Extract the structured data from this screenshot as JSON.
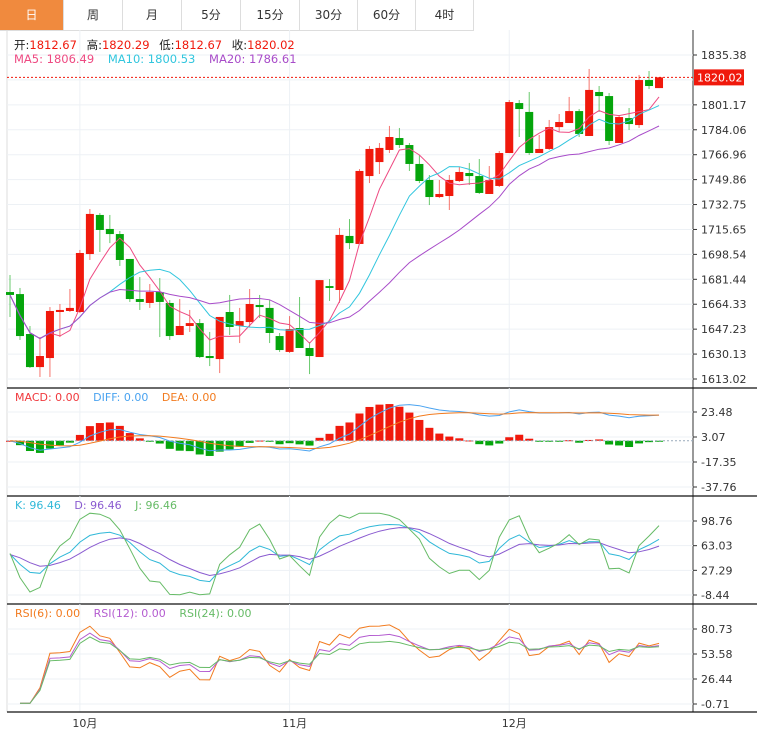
{
  "tabs": [
    {
      "label": "日",
      "active": true
    },
    {
      "label": "周"
    },
    {
      "label": "月"
    },
    {
      "label": "5分"
    },
    {
      "label": "15分"
    },
    {
      "label": "30分"
    },
    {
      "label": "60分"
    },
    {
      "label": "4时"
    }
  ],
  "ohlc_info": {
    "open_label": "开:",
    "open": "1812.67",
    "high_label": "高:",
    "high": "1820.29",
    "low_label": "低:",
    "low": "1812.67",
    "close_label": "收:",
    "close": "1820.02"
  },
  "ma_info": {
    "ma5": "MA5: 1806.49",
    "ma10": "MA10: 1800.53",
    "ma20": "MA20: 1786.61"
  },
  "macd_info": {
    "macd": "MACD: 0.00",
    "diff": "DIFF: 0.00",
    "dea": "DEA: 0.00"
  },
  "kdj_info": {
    "k": "K: 96.46",
    "d": "D: 96.46",
    "j": "J: 96.46"
  },
  "rsi_info": {
    "rsi6": "RSI(6): 0.00",
    "rsi12": "RSI(12): 0.00",
    "rsi24": "RSI(24): 0.00"
  },
  "current_price": "1820.02",
  "colors": {
    "up": "#f0190c",
    "down": "#05a50c",
    "ma5": "#ee4a82",
    "ma10": "#32c6de",
    "ma20": "#a84cc9",
    "diff": "#4aa3f0",
    "dea": "#f27b1f",
    "k": "#30b8d8",
    "d": "#8a5bd0",
    "j": "#66bb66",
    "rsi6": "#f27b1f",
    "rsi12": "#b45cd0",
    "rsi24": "#66bb66",
    "tab_active": "#f08a3e"
  },
  "chart_data": {
    "type": "candlestick",
    "price_axis": {
      "labels": [
        "1835.38",
        "1801.17",
        "1784.06",
        "1766.96",
        "1749.86",
        "1732.75",
        "1715.65",
        "1698.54",
        "1681.44",
        "1664.33",
        "1647.23",
        "1630.13",
        "1613.02"
      ],
      "range": [
        1613.02,
        1835.38
      ]
    },
    "macd_axis": {
      "labels": [
        "23.48",
        "3.07",
        "-17.35",
        "-37.76"
      ],
      "range": [
        -37.76,
        23.48
      ]
    },
    "kdj_axis": {
      "labels": [
        "98.76",
        "63.03",
        "27.29",
        "-8.44"
      ],
      "range": [
        -8.44,
        98.76
      ]
    },
    "rsi_axis": {
      "labels": [
        "80.73",
        "53.58",
        "26.44",
        "-0.71"
      ],
      "range": [
        -0.71,
        80.73
      ]
    },
    "month_ticks": [
      {
        "label": "10月",
        "index": 7
      },
      {
        "label": "11月",
        "index": 28
      },
      {
        "label": "12月",
        "index": 50
      }
    ],
    "ohlc": [
      [
        1672.7,
        1684.4,
        1655.6,
        1670.7
      ],
      [
        1671.3,
        1675.5,
        1639.8,
        1642.5
      ],
      [
        1643.9,
        1649.4,
        1620.6,
        1621.2
      ],
      [
        1621.2,
        1641.8,
        1614.4,
        1628.8
      ],
      [
        1627.4,
        1662.4,
        1614.4,
        1659.7
      ],
      [
        1659.0,
        1664.5,
        1641.8,
        1660.4
      ],
      [
        1659.7,
        1674.8,
        1659.0,
        1661.8
      ],
      [
        1659.0,
        1701.6,
        1658.3,
        1699.5
      ],
      [
        1698.8,
        1729.7,
        1694.7,
        1726.3
      ],
      [
        1725.6,
        1726.9,
        1700.2,
        1715.3
      ],
      [
        1716.0,
        1725.6,
        1706.3,
        1712.5
      ],
      [
        1712.5,
        1714.6,
        1690.6,
        1694.7
      ],
      [
        1695.4,
        1695.4,
        1665.9,
        1667.9
      ],
      [
        1667.9,
        1683.0,
        1660.4,
        1665.9
      ],
      [
        1665.2,
        1678.2,
        1661.8,
        1672.7
      ],
      [
        1672.7,
        1682.3,
        1641.8,
        1665.9
      ],
      [
        1665.2,
        1667.2,
        1639.8,
        1642.5
      ],
      [
        1643.2,
        1667.9,
        1643.2,
        1649.4
      ],
      [
        1649.4,
        1660.4,
        1645.3,
        1651.4
      ],
      [
        1651.4,
        1654.2,
        1627.4,
        1628.1
      ],
      [
        1628.8,
        1645.3,
        1621.9,
        1627.4
      ],
      [
        1626.7,
        1655.6,
        1617.1,
        1655.6
      ],
      [
        1659.0,
        1670.7,
        1643.2,
        1648.7
      ],
      [
        1649.4,
        1661.8,
        1637.7,
        1652.8
      ],
      [
        1652.1,
        1674.8,
        1648.7,
        1664.5
      ],
      [
        1663.8,
        1670.7,
        1654.9,
        1662.4
      ],
      [
        1661.8,
        1667.2,
        1637.7,
        1644.6
      ],
      [
        1642.5,
        1644.6,
        1631.6,
        1632.9
      ],
      [
        1631.6,
        1656.2,
        1630.9,
        1647.3
      ],
      [
        1648.0,
        1669.3,
        1634.3,
        1634.3
      ],
      [
        1634.3,
        1638.4,
        1616.4,
        1628.8
      ],
      [
        1628.1,
        1680.9,
        1628.1,
        1680.9
      ],
      [
        1676.8,
        1681.6,
        1666.6,
        1675.5
      ],
      [
        1674.1,
        1716.7,
        1665.2,
        1711.9
      ],
      [
        1711.2,
        1722.8,
        1702.2,
        1706.3
      ],
      [
        1705.7,
        1757.1,
        1705.7,
        1755.8
      ],
      [
        1752.3,
        1772.9,
        1747.5,
        1770.9
      ],
      [
        1761.9,
        1775.0,
        1753.7,
        1771.6
      ],
      [
        1770.2,
        1786.7,
        1768.1,
        1779.1
      ],
      [
        1778.4,
        1785.3,
        1771.6,
        1773.6
      ],
      [
        1773.6,
        1775.0,
        1755.8,
        1760.6
      ],
      [
        1760.6,
        1766.8,
        1747.5,
        1748.9
      ],
      [
        1749.6,
        1753.0,
        1732.4,
        1737.9
      ],
      [
        1737.9,
        1749.6,
        1737.2,
        1740.0
      ],
      [
        1738.6,
        1753.0,
        1729.0,
        1749.6
      ],
      [
        1748.9,
        1758.5,
        1748.2,
        1755.1
      ],
      [
        1754.4,
        1761.3,
        1746.2,
        1752.3
      ],
      [
        1752.3,
        1764.0,
        1740.0,
        1740.7
      ],
      [
        1740.0,
        1759.2,
        1740.0,
        1749.6
      ],
      [
        1745.5,
        1769.5,
        1744.8,
        1768.1
      ],
      [
        1768.1,
        1804.5,
        1768.1,
        1803.1
      ],
      [
        1802.4,
        1804.5,
        1779.1,
        1798.3
      ],
      [
        1796.3,
        1810.0,
        1766.8,
        1768.1
      ],
      [
        1768.1,
        1780.5,
        1768.1,
        1770.9
      ],
      [
        1770.9,
        1790.8,
        1770.2,
        1785.9
      ],
      [
        1785.9,
        1794.9,
        1782.6,
        1789.4
      ],
      [
        1788.7,
        1806.6,
        1788.7,
        1796.9
      ],
      [
        1796.9,
        1798.3,
        1779.1,
        1781.2
      ],
      [
        1779.8,
        1825.8,
        1779.8,
        1811.4
      ],
      [
        1810.0,
        1814.1,
        1796.3,
        1807.2
      ],
      [
        1807.2,
        1809.3,
        1773.6,
        1776.4
      ],
      [
        1775.0,
        1794.2,
        1775.0,
        1792.8
      ],
      [
        1792.1,
        1799.0,
        1783.9,
        1788.0
      ],
      [
        1787.3,
        1821.7,
        1785.3,
        1818.2
      ],
      [
        1818.2,
        1824.4,
        1812.0,
        1814.1
      ],
      [
        1812.67,
        1820.29,
        1812.67,
        1820.02
      ]
    ]
  }
}
